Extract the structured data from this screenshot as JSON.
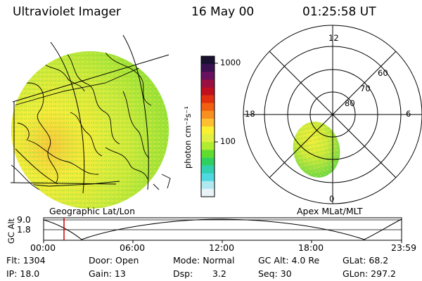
{
  "header": {
    "instrument": "Ultraviolet Imager",
    "date": "16 May 00",
    "time": "01:25:58 UT"
  },
  "colorbar": {
    "label": "photon cm⁻²s⁻¹",
    "ticks": [
      "1000",
      "100"
    ],
    "colors": [
      "#1a1030",
      "#3a1050",
      "#6a1060",
      "#9a1040",
      "#c01020",
      "#e03010",
      "#f06010",
      "#f89020",
      "#fcc030",
      "#f8f030",
      "#e0f040",
      "#b0ec30",
      "#60dc30",
      "#30d060",
      "#30d0b0",
      "#50d8e0",
      "#b0e8f0",
      "#e8f4f8"
    ]
  },
  "geo_panel": {
    "caption": "Geographic Lat/Lon"
  },
  "polar_panel": {
    "caption": "Apex MLat/MLT",
    "mlt_labels": [
      "12",
      "18",
      "6",
      "0"
    ],
    "lat_labels": [
      "60",
      "70",
      "80"
    ]
  },
  "altitude_plot": {
    "ylabel": "GC Alt",
    "y_ticks": [
      "9.0",
      "1.8"
    ],
    "x_ticks": [
      "00:00",
      "06:00",
      "12:00",
      "18:00",
      "23:59"
    ],
    "current_time_marker": "01:25:58",
    "marker_color": "#cc0000"
  },
  "info": {
    "flt": "Flt: 1304",
    "door": "Door: Open",
    "mode": "Mode: Normal",
    "gc_alt": "GC Alt: 4.0 Re",
    "glat": "GLat: 68.2",
    "ip": "IP: 18.0",
    "gain": "Gain: 13",
    "dsp_label": "Dsp:",
    "dsp_value": "3.2",
    "seq": "Seq: 30",
    "glon": "GLon: 297.2"
  }
}
